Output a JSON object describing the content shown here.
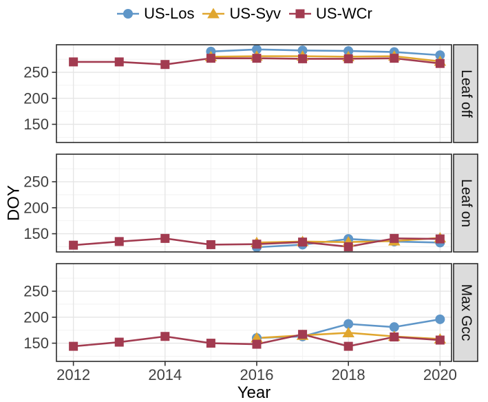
{
  "colors": {
    "background": "#FFFFFF",
    "panel_background": "#FFFFFF",
    "panel_border": "#2B2B2B",
    "grid_major": "#E5E5E5",
    "grid_minor": "#F2F2F2",
    "strip_background": "#DCDCDC",
    "strip_border": "#2B2B2B",
    "tick_mark": "#333333",
    "tick_text": "#404040",
    "axis_title_text": "#000000",
    "series_blue": "#5F96C8",
    "series_yellow": "#E0A62F",
    "series_red": "#A23B50"
  },
  "legend": {
    "items": [
      {
        "label": "US-Los",
        "marker": "circle",
        "color": "#5F96C8"
      },
      {
        "label": "US-Syv",
        "marker": "triangle",
        "color": "#E0A62F"
      },
      {
        "label": "US-WCr",
        "marker": "square",
        "color": "#A23B50"
      }
    ]
  },
  "chart_data": {
    "type": "line",
    "title": "",
    "xlabel": "Year",
    "ylabel": "DOY",
    "legend_position": "top",
    "grid": true,
    "x_range": [
      2011.63,
      2020.25
    ],
    "y_range": [
      115,
      303
    ],
    "x_ticks_major": [
      2012,
      2014,
      2016,
      2018,
      2020
    ],
    "x_ticks_minor": [
      2013,
      2015,
      2017,
      2019
    ],
    "y_ticks_major": [
      150,
      200,
      250
    ],
    "y_ticks_minor": [
      125,
      175,
      225,
      275
    ],
    "facets": [
      {
        "label": "Leaf off",
        "series": [
          {
            "name": "US-Los",
            "marker": "circle",
            "color": "#5F96C8",
            "x": [
              2015,
              2016,
              2017,
              2018,
              2019,
              2020
            ],
            "y": [
              290,
              294,
              292,
              291,
              289,
              283
            ]
          },
          {
            "name": "US-Syv",
            "marker": "triangle",
            "color": "#E0A62F",
            "x": [
              2015,
              2016,
              2017,
              2018,
              2019,
              2020
            ],
            "y": [
              280,
              281,
              281,
              280,
              281,
              271
            ]
          },
          {
            "name": "US-WCr",
            "marker": "square",
            "color": "#A23B50",
            "x": [
              2012,
              2013,
              2014,
              2015,
              2016,
              2017,
              2018,
              2019,
              2020
            ],
            "y": [
              270,
              270,
              265,
              277,
              277,
              276,
              276,
              277,
              267
            ]
          }
        ]
      },
      {
        "label": "Leaf on",
        "series": [
          {
            "name": "US-Los",
            "marker": "circle",
            "color": "#5F96C8",
            "x": [
              2016,
              2017,
              2018,
              2019,
              2020
            ],
            "y": [
              124,
              129,
              140,
              135,
              133
            ]
          },
          {
            "name": "US-Syv",
            "marker": "triangle",
            "color": "#E0A62F",
            "x": [
              2016,
              2017,
              2018,
              2019,
              2020
            ],
            "y": [
              133,
              135,
              134,
              136,
              142
            ]
          },
          {
            "name": "US-WCr",
            "marker": "square",
            "color": "#A23B50",
            "x": [
              2012,
              2013,
              2014,
              2015,
              2016,
              2017,
              2018,
              2019,
              2020
            ],
            "y": [
              128,
              135,
              141,
              129,
              130,
              134,
              125,
              141,
              140
            ]
          }
        ]
      },
      {
        "label": "Max Gcc",
        "series": [
          {
            "name": "US-Los",
            "marker": "circle",
            "color": "#5F96C8",
            "x": [
              2016,
              2017,
              2018,
              2019,
              2020
            ],
            "y": [
              160,
              163,
              187,
              181,
              196
            ]
          },
          {
            "name": "US-Syv",
            "marker": "triangle",
            "color": "#E0A62F",
            "x": [
              2016,
              2017,
              2018,
              2019,
              2020
            ],
            "y": [
              160,
              165,
              170,
              163,
              158
            ]
          },
          {
            "name": "US-WCr",
            "marker": "square",
            "color": "#A23B50",
            "x": [
              2012,
              2013,
              2014,
              2015,
              2016,
              2017,
              2018,
              2019,
              2020
            ],
            "y": [
              144,
              152,
              163,
              150,
              148,
              167,
              144,
              162,
              156
            ]
          }
        ]
      }
    ]
  }
}
